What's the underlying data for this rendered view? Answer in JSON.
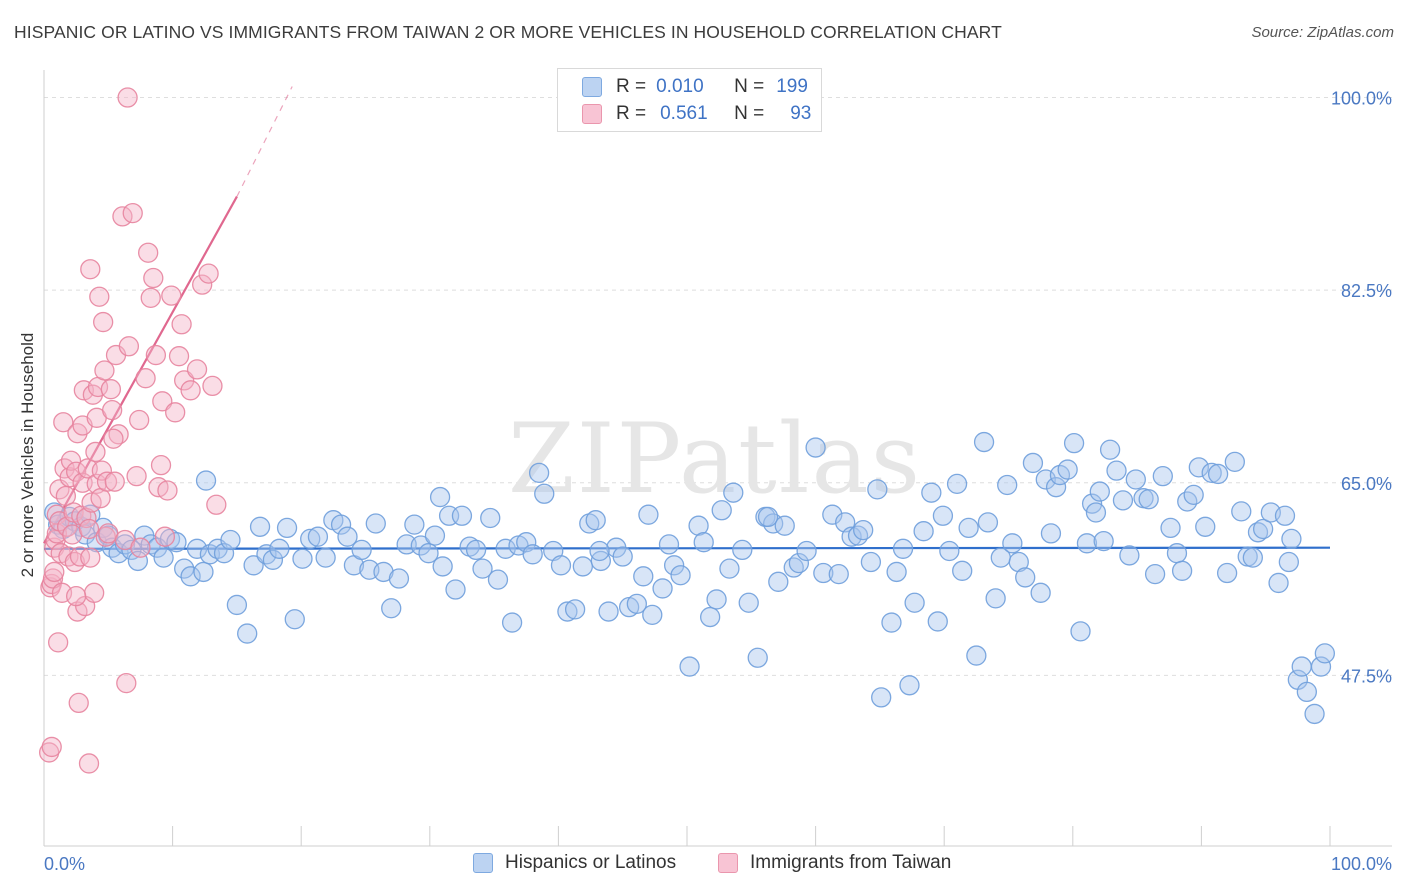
{
  "title": "HISPANIC OR LATINO VS IMMIGRANTS FROM TAIWAN 2 OR MORE VEHICLES IN HOUSEHOLD CORRELATION CHART",
  "source": "Source: ZipAtlas.com",
  "watermark": "ZIPatlas",
  "legend_stats": [
    {
      "r_label": "R =",
      "r_value": "0.010",
      "n_label": "N =",
      "n_value": "199"
    },
    {
      "r_label": "R =",
      "r_value": "0.561",
      "n_label": "N =",
      "n_value": "93"
    }
  ],
  "colors": {
    "blue_fill": "#a9c6ee",
    "blue_stroke": "#6f9fdc",
    "blue_line": "#2f6fcc",
    "pink_fill": "#f5b4c8",
    "pink_stroke": "#e7849f",
    "pink_line": "#e0688f",
    "tick_text": "#4a78c2",
    "grid": "#dedede"
  },
  "chart_data": {
    "type": "scatter",
    "title": "HISPANIC OR LATINO VS IMMIGRANTS FROM TAIWAN 2 OR MORE VEHICLES IN HOUSEHOLD CORRELATION CHART",
    "xlabel": "",
    "ylabel": "2 or more Vehicles in Household",
    "xlim": [
      0,
      100
    ],
    "ylim": [
      32,
      102.5
    ],
    "x_tick_labels": [
      "0.0%",
      "100.0%"
    ],
    "y_ticks": [
      47.5,
      65.0,
      82.5,
      100.0
    ],
    "y_tick_labels": [
      "47.5%",
      "65.0%",
      "82.5%",
      "100.0%"
    ],
    "grid": true,
    "legend_position": "bottom",
    "series": [
      {
        "name": "Hispanics or Latinos",
        "color": "#a9c6ee",
        "trend": {
          "x": [
            0,
            100
          ],
          "y": [
            59.0,
            59.1
          ]
        },
        "points": [
          [
            0.8,
            62.3
          ],
          [
            1.1,
            61.2
          ],
          [
            1.5,
            60.8
          ],
          [
            2.0,
            61.9
          ],
          [
            2.4,
            61.5
          ],
          [
            2.9,
            61.0
          ],
          [
            3.2,
            60.3
          ],
          [
            3.6,
            62.1
          ],
          [
            4.1,
            59.6
          ],
          [
            4.6,
            60.9
          ],
          [
            5.0,
            60.2
          ],
          [
            5.3,
            59.1
          ],
          [
            5.8,
            58.6
          ],
          [
            6.3,
            59.4
          ],
          [
            6.8,
            58.9
          ],
          [
            7.3,
            57.9
          ],
          [
            7.8,
            60.2
          ],
          [
            8.3,
            59.4
          ],
          [
            8.8,
            59.1
          ],
          [
            9.3,
            58.2
          ],
          [
            9.8,
            59.9
          ],
          [
            10.3,
            59.6
          ],
          [
            10.9,
            57.2
          ],
          [
            11.4,
            56.5
          ],
          [
            11.9,
            59.0
          ],
          [
            12.4,
            56.9
          ],
          [
            12.9,
            58.5
          ],
          [
            13.5,
            59.0
          ],
          [
            14.0,
            58.6
          ],
          [
            14.5,
            59.8
          ],
          [
            15.0,
            53.9
          ],
          [
            15.8,
            51.3
          ],
          [
            16.3,
            57.5
          ],
          [
            16.8,
            61.0
          ],
          [
            17.3,
            58.5
          ],
          [
            17.8,
            58.0
          ],
          [
            18.3,
            59.0
          ],
          [
            18.9,
            60.9
          ],
          [
            19.5,
            52.6
          ],
          [
            20.1,
            58.1
          ],
          [
            20.7,
            59.9
          ],
          [
            21.3,
            60.1
          ],
          [
            21.9,
            58.2
          ],
          [
            22.5,
            61.6
          ],
          [
            23.1,
            61.2
          ],
          [
            23.6,
            60.1
          ],
          [
            24.1,
            57.5
          ],
          [
            24.7,
            58.9
          ],
          [
            25.3,
            57.1
          ],
          [
            25.8,
            61.3
          ],
          [
            26.4,
            56.9
          ],
          [
            27.0,
            53.6
          ],
          [
            27.6,
            56.3
          ],
          [
            28.2,
            59.4
          ],
          [
            28.8,
            61.2
          ],
          [
            29.3,
            59.3
          ],
          [
            29.9,
            58.6
          ],
          [
            30.4,
            60.2
          ],
          [
            31.0,
            57.4
          ],
          [
            31.5,
            62.0
          ],
          [
            32.0,
            55.3
          ],
          [
            32.5,
            62.0
          ],
          [
            33.1,
            59.2
          ],
          [
            33.6,
            58.9
          ],
          [
            34.1,
            57.2
          ],
          [
            34.7,
            61.8
          ],
          [
            35.3,
            56.2
          ],
          [
            35.9,
            59.0
          ],
          [
            36.4,
            52.3
          ],
          [
            36.9,
            59.3
          ],
          [
            37.5,
            59.6
          ],
          [
            38.0,
            58.5
          ],
          [
            38.5,
            65.9
          ],
          [
            38.9,
            64.0
          ],
          [
            39.6,
            58.8
          ],
          [
            40.2,
            57.5
          ],
          [
            40.7,
            53.3
          ],
          [
            41.3,
            53.5
          ],
          [
            41.9,
            57.4
          ],
          [
            42.4,
            61.3
          ],
          [
            42.9,
            61.6
          ],
          [
            43.3,
            57.9
          ],
          [
            43.9,
            53.3
          ],
          [
            44.5,
            59.1
          ],
          [
            45.0,
            58.3
          ],
          [
            45.5,
            53.7
          ],
          [
            46.1,
            54.0
          ],
          [
            46.6,
            56.5
          ],
          [
            47.0,
            62.1
          ],
          [
            47.3,
            53.0
          ],
          [
            48.1,
            55.4
          ],
          [
            48.6,
            59.4
          ],
          [
            49.0,
            57.5
          ],
          [
            49.5,
            56.6
          ],
          [
            50.2,
            48.3
          ],
          [
            50.9,
            61.1
          ],
          [
            51.3,
            59.6
          ],
          [
            51.8,
            52.8
          ],
          [
            52.3,
            54.4
          ],
          [
            52.7,
            62.5
          ],
          [
            53.3,
            57.2
          ],
          [
            53.6,
            64.1
          ],
          [
            54.3,
            58.9
          ],
          [
            54.8,
            54.1
          ],
          [
            55.5,
            49.1
          ],
          [
            56.1,
            61.9
          ],
          [
            56.7,
            61.3
          ],
          [
            57.1,
            56.0
          ],
          [
            57.6,
            61.1
          ],
          [
            58.3,
            57.3
          ],
          [
            58.7,
            57.7
          ],
          [
            59.3,
            58.8
          ],
          [
            60.0,
            68.2
          ],
          [
            60.6,
            56.8
          ],
          [
            61.3,
            62.1
          ],
          [
            61.8,
            56.7
          ],
          [
            62.3,
            61.4
          ],
          [
            62.8,
            60.1
          ],
          [
            63.3,
            60.2
          ],
          [
            63.7,
            60.7
          ],
          [
            64.3,
            57.8
          ],
          [
            64.8,
            64.4
          ],
          [
            65.1,
            45.5
          ],
          [
            65.9,
            52.3
          ],
          [
            66.3,
            56.9
          ],
          [
            66.8,
            59.0
          ],
          [
            67.3,
            46.6
          ],
          [
            67.7,
            54.1
          ],
          [
            68.4,
            60.6
          ],
          [
            69.0,
            64.1
          ],
          [
            69.5,
            52.4
          ],
          [
            69.9,
            62.0
          ],
          [
            70.4,
            58.8
          ],
          [
            71.0,
            64.9
          ],
          [
            71.4,
            57.0
          ],
          [
            71.9,
            60.9
          ],
          [
            72.5,
            49.3
          ],
          [
            73.1,
            68.7
          ],
          [
            73.4,
            61.4
          ],
          [
            74.0,
            54.5
          ],
          [
            74.4,
            58.2
          ],
          [
            74.9,
            64.8
          ],
          [
            75.3,
            59.5
          ],
          [
            75.8,
            57.8
          ],
          [
            76.3,
            56.4
          ],
          [
            76.9,
            66.8
          ],
          [
            77.5,
            55.0
          ],
          [
            77.9,
            65.3
          ],
          [
            78.3,
            60.4
          ],
          [
            78.7,
            64.6
          ],
          [
            79.0,
            65.7
          ],
          [
            79.6,
            66.2
          ],
          [
            80.1,
            68.6
          ],
          [
            80.6,
            51.5
          ],
          [
            81.1,
            59.5
          ],
          [
            81.5,
            63.1
          ],
          [
            81.8,
            62.3
          ],
          [
            82.4,
            59.7
          ],
          [
            82.9,
            68.0
          ],
          [
            83.4,
            66.1
          ],
          [
            83.9,
            63.4
          ],
          [
            84.4,
            58.4
          ],
          [
            84.9,
            65.3
          ],
          [
            85.5,
            63.6
          ],
          [
            85.9,
            63.5
          ],
          [
            86.4,
            56.7
          ],
          [
            87.0,
            65.6
          ],
          [
            87.6,
            60.9
          ],
          [
            88.1,
            58.6
          ],
          [
            88.5,
            57.0
          ],
          [
            88.9,
            63.3
          ],
          [
            89.4,
            63.9
          ],
          [
            89.8,
            66.4
          ],
          [
            90.3,
            61.0
          ],
          [
            90.8,
            65.9
          ],
          [
            91.3,
            65.8
          ],
          [
            92.0,
            56.8
          ],
          [
            92.6,
            66.9
          ],
          [
            93.1,
            62.4
          ],
          [
            93.6,
            58.3
          ],
          [
            94.0,
            58.2
          ],
          [
            94.4,
            60.5
          ],
          [
            94.8,
            60.8
          ],
          [
            95.4,
            62.3
          ],
          [
            96.0,
            55.9
          ],
          [
            96.5,
            62.0
          ],
          [
            97.0,
            59.9
          ],
          [
            97.5,
            47.1
          ],
          [
            97.8,
            48.3
          ],
          [
            98.2,
            46.0
          ],
          [
            98.8,
            44.0
          ],
          [
            99.3,
            48.3
          ],
          [
            99.6,
            49.5
          ],
          [
            12.6,
            65.2
          ],
          [
            30.8,
            63.7
          ],
          [
            43.2,
            58.8
          ],
          [
            56.3,
            61.9
          ],
          [
            82.1,
            64.2
          ],
          [
            96.8,
            57.8
          ]
        ]
      },
      {
        "name": "Immigrants from Taiwan",
        "color": "#f5b4c8",
        "trend": {
          "x": [
            0,
            15.0
          ],
          "y": [
            59.5,
            91.0
          ],
          "dashed_to": {
            "x": 19.3,
            "y": 101.0
          }
        },
        "points": [
          [
            0.4,
            40.5
          ],
          [
            0.5,
            55.5
          ],
          [
            0.6,
            55.8
          ],
          [
            0.7,
            56.3
          ],
          [
            0.8,
            56.9
          ],
          [
            0.8,
            59.1
          ],
          [
            0.9,
            59.8
          ],
          [
            1.0,
            62.1
          ],
          [
            1.0,
            60.4
          ],
          [
            1.1,
            50.5
          ],
          [
            1.2,
            64.4
          ],
          [
            1.2,
            61.5
          ],
          [
            1.3,
            58.6
          ],
          [
            1.4,
            55.0
          ],
          [
            1.5,
            70.5
          ],
          [
            1.6,
            66.3
          ],
          [
            1.7,
            63.8
          ],
          [
            1.8,
            61.0
          ],
          [
            1.9,
            58.3
          ],
          [
            2.0,
            65.5
          ],
          [
            2.1,
            67.0
          ],
          [
            2.2,
            60.3
          ],
          [
            2.3,
            62.3
          ],
          [
            2.4,
            57.8
          ],
          [
            2.5,
            66.0
          ],
          [
            2.6,
            69.5
          ],
          [
            2.6,
            53.3
          ],
          [
            2.7,
            45.0
          ],
          [
            2.8,
            58.3
          ],
          [
            2.9,
            62.0
          ],
          [
            3.0,
            70.2
          ],
          [
            3.0,
            65.0
          ],
          [
            3.1,
            73.4
          ],
          [
            3.2,
            53.8
          ],
          [
            3.3,
            61.8
          ],
          [
            3.4,
            66.3
          ],
          [
            3.5,
            60.8
          ],
          [
            3.5,
            39.5
          ],
          [
            3.6,
            84.4
          ],
          [
            3.7,
            63.2
          ],
          [
            3.8,
            73.0
          ],
          [
            3.9,
            55.0
          ],
          [
            4.0,
            67.8
          ],
          [
            4.1,
            64.9
          ],
          [
            4.1,
            70.9
          ],
          [
            4.2,
            73.7
          ],
          [
            4.3,
            81.9
          ],
          [
            4.4,
            63.6
          ],
          [
            4.5,
            66.1
          ],
          [
            4.6,
            79.6
          ],
          [
            4.7,
            75.2
          ],
          [
            4.8,
            60.1
          ],
          [
            4.9,
            65.1
          ],
          [
            5.0,
            60.4
          ],
          [
            5.2,
            73.5
          ],
          [
            5.3,
            71.6
          ],
          [
            5.5,
            65.1
          ],
          [
            5.6,
            76.6
          ],
          [
            5.8,
            69.4
          ],
          [
            6.1,
            89.2
          ],
          [
            6.3,
            59.8
          ],
          [
            6.4,
            46.8
          ],
          [
            6.6,
            77.4
          ],
          [
            6.9,
            89.5
          ],
          [
            7.2,
            65.6
          ],
          [
            7.5,
            59.1
          ],
          [
            7.9,
            74.5
          ],
          [
            8.1,
            85.9
          ],
          [
            8.3,
            81.8
          ],
          [
            8.5,
            83.6
          ],
          [
            8.7,
            76.6
          ],
          [
            8.9,
            64.6
          ],
          [
            9.2,
            72.4
          ],
          [
            9.4,
            60.1
          ],
          [
            9.6,
            64.3
          ],
          [
            9.9,
            82.0
          ],
          [
            10.2,
            71.4
          ],
          [
            10.5,
            76.5
          ],
          [
            10.9,
            74.3
          ],
          [
            11.4,
            73.4
          ],
          [
            11.9,
            75.3
          ],
          [
            12.3,
            83.0
          ],
          [
            12.8,
            84.0
          ],
          [
            13.1,
            73.8
          ],
          [
            13.4,
            63.0
          ],
          [
            6.5,
            100.0
          ],
          [
            7.4,
            70.7
          ],
          [
            9.1,
            66.6
          ],
          [
            10.7,
            79.4
          ],
          [
            5.4,
            69.0
          ],
          [
            2.5,
            54.7
          ],
          [
            3.6,
            58.2
          ],
          [
            0.6,
            41.0
          ]
        ]
      }
    ]
  },
  "bottom_legend": [
    {
      "label": "Hispanics or Latinos"
    },
    {
      "label": "Immigrants from Taiwan"
    }
  ]
}
